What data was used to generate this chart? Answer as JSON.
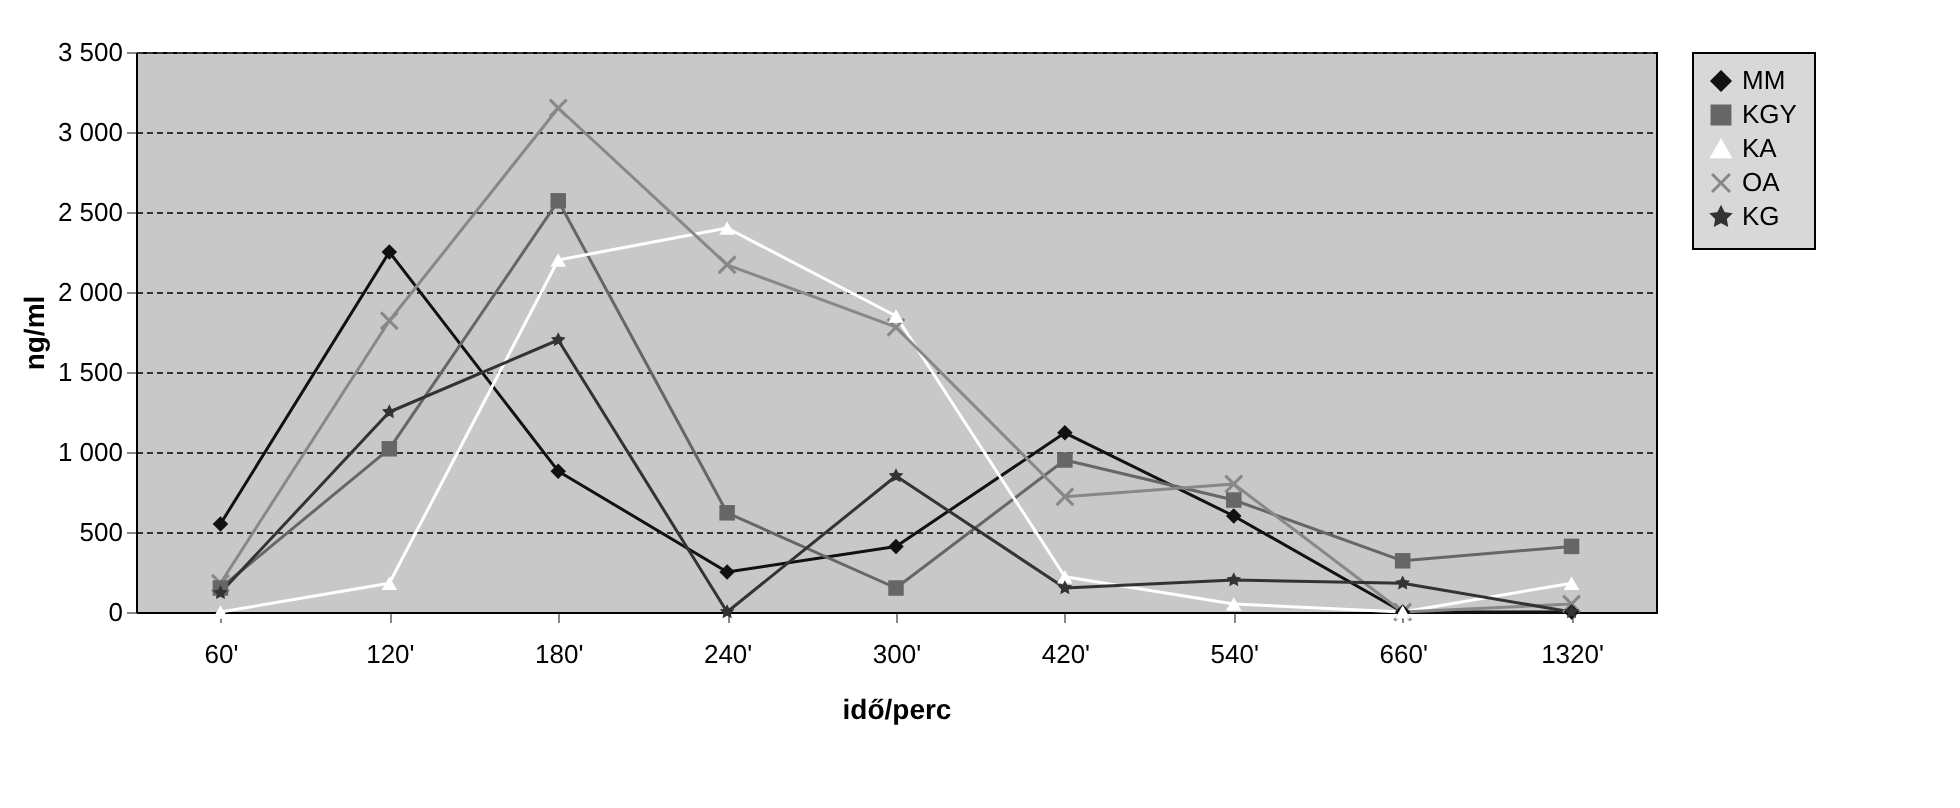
{
  "chart_data": {
    "type": "line",
    "xlabel": "idő/perc",
    "ylabel": "ng/ml",
    "categories": [
      "60'",
      "120'",
      "180'",
      "240'",
      "300'",
      "420'",
      "540'",
      "660'",
      "1320'"
    ],
    "series": [
      {
        "name": "MM",
        "color": "#111111",
        "marker": "diamond",
        "values": [
          550,
          2250,
          880,
          250,
          410,
          1120,
          600,
          0,
          0
        ]
      },
      {
        "name": "KGY",
        "color": "#666666",
        "marker": "square",
        "values": [
          150,
          1020,
          2570,
          620,
          150,
          950,
          700,
          320,
          410
        ]
      },
      {
        "name": "KA",
        "color": "#ffffff",
        "marker": "triangle",
        "values": [
          0,
          180,
          2200,
          2400,
          1850,
          220,
          50,
          0,
          180
        ]
      },
      {
        "name": "OA",
        "color": "#888888",
        "marker": "cross",
        "values": [
          180,
          1820,
          3150,
          2170,
          1780,
          720,
          800,
          0,
          50
        ]
      },
      {
        "name": "KG",
        "color": "#333333",
        "marker": "star",
        "values": [
          120,
          1250,
          1700,
          0,
          850,
          150,
          200,
          180,
          0
        ]
      }
    ],
    "ylim": [
      0,
      3500
    ],
    "yticks": [
      0,
      500,
      {
        "value": 1000,
        "label": "1 000"
      },
      {
        "value": 1500,
        "label": "1 500"
      },
      {
        "value": 2000,
        "label": "2 000"
      },
      {
        "value": 2500,
        "label": "2 500"
      },
      {
        "value": 3000,
        "label": "3 000"
      },
      {
        "value": 3500,
        "label": "3 500"
      }
    ],
    "grid": "y",
    "legend": "right",
    "line_style": "solid"
  }
}
